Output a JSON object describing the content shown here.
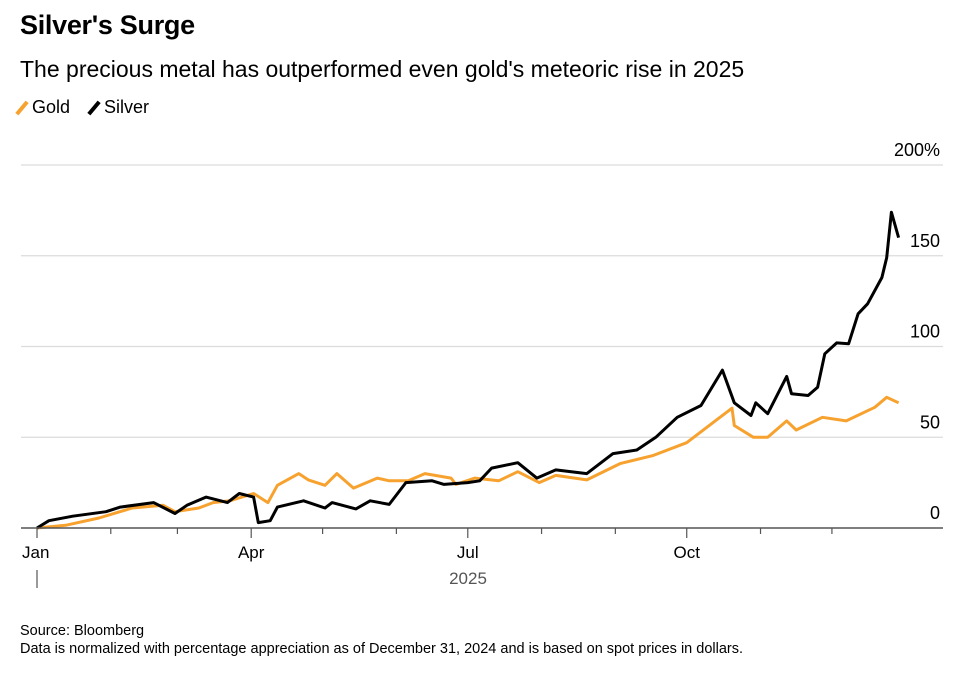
{
  "title": "Silver's Surge",
  "subtitle": "The precious metal has outperformed even gold's meteoric rise in 2025",
  "source": "Source: Bloomberg",
  "note": "Data is normalized with percentage appreciation as of December 31, 2024 and is based on spot prices in dollars.",
  "chart_data": {
    "type": "line",
    "title": "Silver's Surge",
    "xlabel": "2025",
    "ylabel": "",
    "ylim": [
      0,
      200
    ],
    "y_ticks": [
      "0",
      "50",
      "100",
      "150",
      "200%"
    ],
    "x_ticks": [
      "Jan",
      "Apr",
      "Jul",
      "Oct"
    ],
    "x_year_label": "2025",
    "grid": true,
    "legend": "top-left",
    "series": [
      {
        "name": "Gold",
        "color": "#f7a22f",
        "points": [
          [
            "2025-01-01",
            0
          ],
          [
            "2025-01-13",
            1.5
          ],
          [
            "2025-01-27",
            5.5
          ],
          [
            "2025-02-10",
            11
          ],
          [
            "2025-02-23",
            12.5
          ],
          [
            "2025-02-28",
            9
          ],
          [
            "2025-03-10",
            11
          ],
          [
            "2025-03-16",
            14
          ],
          [
            "2025-03-23",
            15
          ],
          [
            "2025-04-02",
            19
          ],
          [
            "2025-04-08",
            14
          ],
          [
            "2025-04-12",
            23.5
          ],
          [
            "2025-04-21",
            30
          ],
          [
            "2025-04-25",
            26.5
          ],
          [
            "2025-05-02",
            23.5
          ],
          [
            "2025-05-07",
            30
          ],
          [
            "2025-05-14",
            22
          ],
          [
            "2025-05-24",
            27.5
          ],
          [
            "2025-05-29",
            26
          ],
          [
            "2025-06-06",
            26
          ],
          [
            "2025-06-13",
            30
          ],
          [
            "2025-06-24",
            27.5
          ],
          [
            "2025-06-26",
            24
          ],
          [
            "2025-07-04",
            27.5
          ],
          [
            "2025-07-14",
            26
          ],
          [
            "2025-07-22",
            31
          ],
          [
            "2025-07-31",
            25
          ],
          [
            "2025-08-07",
            29
          ],
          [
            "2025-08-20",
            26.5
          ],
          [
            "2025-09-03",
            35.5
          ],
          [
            "2025-09-17",
            40
          ],
          [
            "2025-10-01",
            47
          ],
          [
            "2025-10-12",
            58
          ],
          [
            "2025-10-20",
            66
          ],
          [
            "2025-10-21",
            56.5
          ],
          [
            "2025-10-29",
            50
          ],
          [
            "2025-11-04",
            50
          ],
          [
            "2025-11-12",
            59
          ],
          [
            "2025-11-16",
            54
          ],
          [
            "2025-11-27",
            61
          ],
          [
            "2025-12-07",
            59
          ],
          [
            "2025-12-19",
            66.5
          ],
          [
            "2025-12-24",
            72
          ],
          [
            "2025-12-29",
            69
          ]
        ]
      },
      {
        "name": "Silver",
        "color": "#000000",
        "points": [
          [
            "2025-01-01",
            0
          ],
          [
            "2025-01-06",
            4
          ],
          [
            "2025-01-16",
            6.5
          ],
          [
            "2025-01-30",
            9
          ],
          [
            "2025-02-05",
            11.5
          ],
          [
            "2025-02-19",
            14
          ],
          [
            "2025-02-28",
            8
          ],
          [
            "2025-03-05",
            12.5
          ],
          [
            "2025-03-13",
            17
          ],
          [
            "2025-03-22",
            14
          ],
          [
            "2025-03-27",
            19
          ],
          [
            "2025-04-02",
            17
          ],
          [
            "2025-04-04",
            3
          ],
          [
            "2025-04-09",
            4
          ],
          [
            "2025-04-12",
            11.5
          ],
          [
            "2025-04-23",
            15
          ],
          [
            "2025-05-02",
            11
          ],
          [
            "2025-05-05",
            14
          ],
          [
            "2025-05-15",
            10.5
          ],
          [
            "2025-05-21",
            15
          ],
          [
            "2025-05-29",
            13
          ],
          [
            "2025-06-05",
            25
          ],
          [
            "2025-06-16",
            26
          ],
          [
            "2025-06-21",
            24
          ],
          [
            "2025-07-01",
            25
          ],
          [
            "2025-07-06",
            26
          ],
          [
            "2025-07-11",
            33
          ],
          [
            "2025-07-22",
            36
          ],
          [
            "2025-07-30",
            27.5
          ],
          [
            "2025-08-07",
            32
          ],
          [
            "2025-08-20",
            30
          ],
          [
            "2025-08-31",
            41
          ],
          [
            "2025-09-10",
            43
          ],
          [
            "2025-09-18",
            50
          ],
          [
            "2025-09-27",
            61
          ],
          [
            "2025-10-07",
            67.5
          ],
          [
            "2025-10-16",
            87
          ],
          [
            "2025-10-21",
            69
          ],
          [
            "2025-10-28",
            62
          ],
          [
            "2025-10-30",
            69
          ],
          [
            "2025-11-04",
            63
          ],
          [
            "2025-11-12",
            83.5
          ],
          [
            "2025-11-14",
            74
          ],
          [
            "2025-11-21",
            73
          ],
          [
            "2025-11-25",
            77.5
          ],
          [
            "2025-11-28",
            96
          ],
          [
            "2025-12-03",
            102
          ],
          [
            "2025-12-08",
            101.5
          ],
          [
            "2025-12-12",
            118
          ],
          [
            "2025-12-16",
            123.5
          ],
          [
            "2025-12-22",
            138
          ],
          [
            "2025-12-24",
            149
          ],
          [
            "2025-12-26",
            174
          ],
          [
            "2025-12-29",
            160
          ]
        ]
      }
    ]
  }
}
